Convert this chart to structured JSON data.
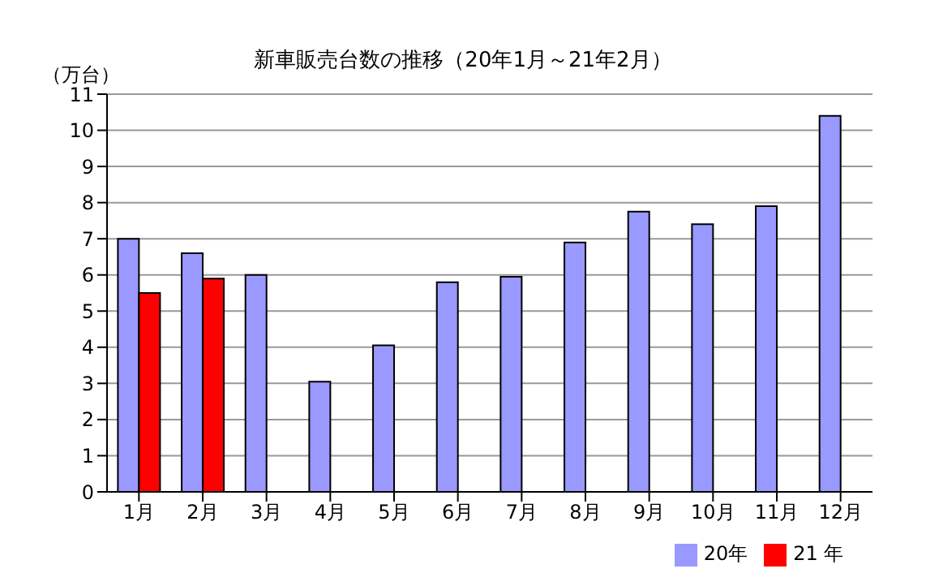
{
  "chart_data": {
    "type": "bar",
    "title": "新車販売台数の推移（20年1月～21年2月）",
    "ylabel": "（万台）",
    "categories": [
      "1月",
      "2月",
      "3月",
      "4月",
      "5月",
      "6月",
      "7月",
      "8月",
      "9月",
      "10月",
      "11月",
      "12月"
    ],
    "series": [
      {
        "name": "20年",
        "color": "#9999ff",
        "values": [
          7.0,
          6.6,
          6.0,
          3.05,
          4.05,
          5.8,
          5.95,
          6.9,
          7.75,
          7.4,
          7.9,
          10.4
        ]
      },
      {
        "name": "21 年",
        "color": "#ff0000",
        "values": [
          5.5,
          5.9,
          null,
          null,
          null,
          null,
          null,
          null,
          null,
          null,
          null,
          null
        ]
      }
    ],
    "ylim": [
      0,
      11
    ],
    "yticks": [
      0,
      1,
      2,
      3,
      4,
      5,
      6,
      7,
      8,
      9,
      10,
      11
    ],
    "grid": "y",
    "legend": "bottom"
  }
}
